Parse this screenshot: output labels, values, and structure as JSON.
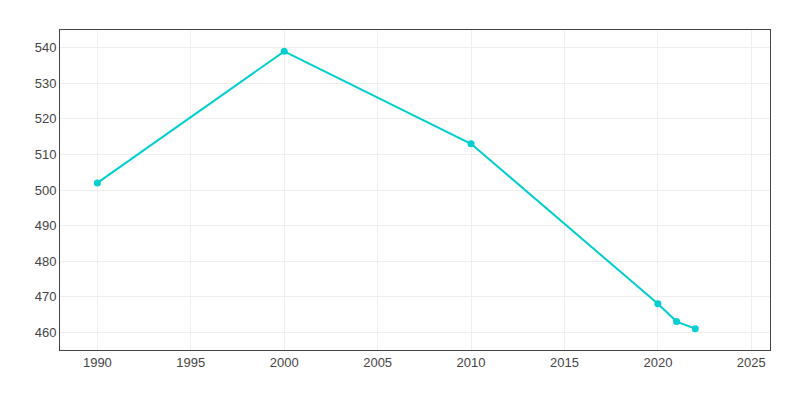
{
  "chart_data": {
    "type": "line",
    "x": [
      1990,
      2000,
      2010,
      2020,
      2021,
      2022
    ],
    "values": [
      502,
      539,
      513,
      468,
      463,
      461
    ],
    "color": "#00CED1",
    "marker": "circle",
    "xlim": [
      1988,
      2026
    ],
    "ylim": [
      455,
      545
    ],
    "xticks": [
      1990,
      1995,
      2000,
      2005,
      2010,
      2015,
      2020,
      2025
    ],
    "yticks": [
      460,
      470,
      480,
      490,
      500,
      510,
      520,
      530,
      540
    ],
    "grid": true
  }
}
